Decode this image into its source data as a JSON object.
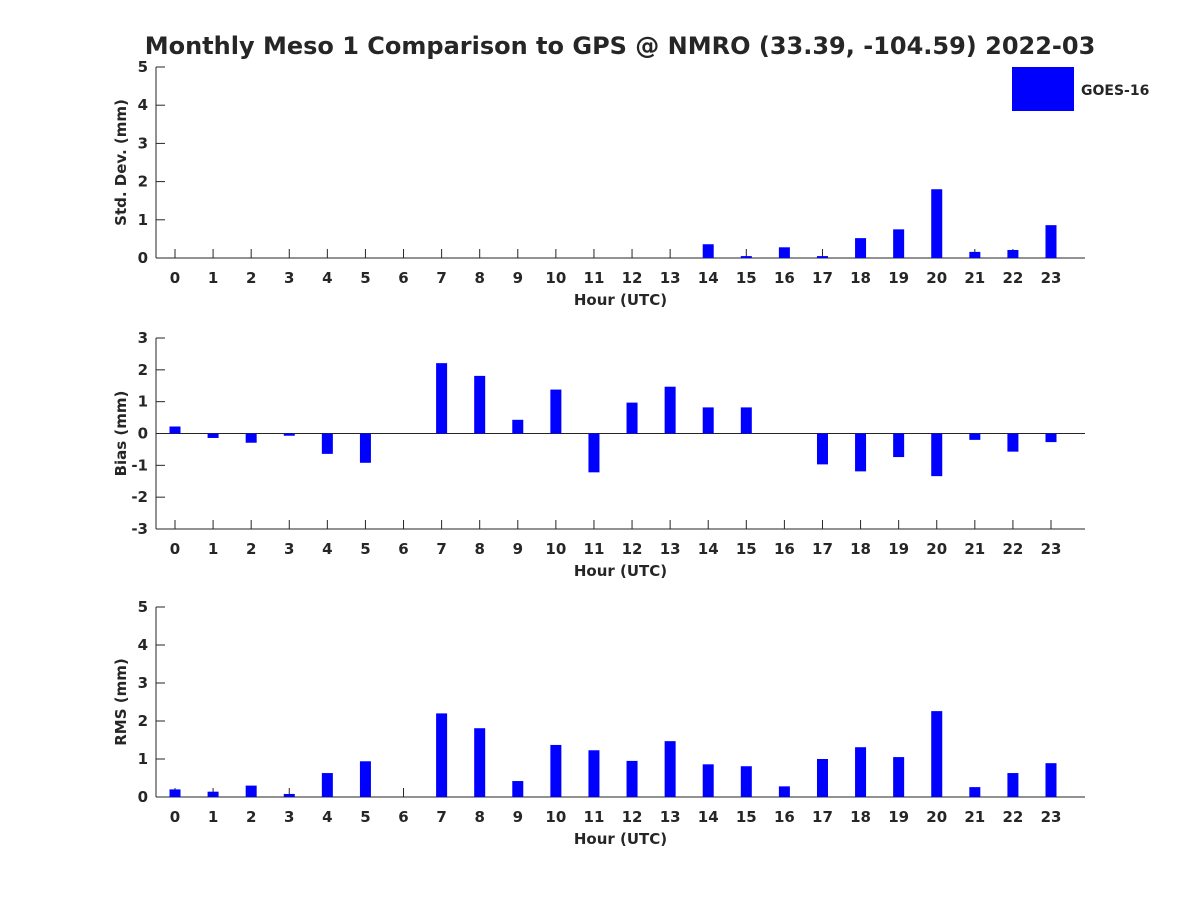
{
  "chart_data": {
    "type": "bar",
    "title": "Monthly Meso 1 Comparison to GPS @ NMRO (33.39, -104.59) 2022-03",
    "legend": {
      "entries": [
        "GOES-16"
      ],
      "placement": "top-right"
    },
    "bar_color": "#0000ff",
    "axis_color": "#262626",
    "categories": [
      "0",
      "1",
      "2",
      "3",
      "4",
      "5",
      "6",
      "7",
      "8",
      "9",
      "10",
      "11",
      "12",
      "13",
      "14",
      "15",
      "16",
      "17",
      "18",
      "19",
      "20",
      "21",
      "22",
      "23"
    ],
    "panels": [
      {
        "xlabel": "Hour (UTC)",
        "ylabel": "Std. Dev. (mm)",
        "ylim": [
          0,
          5
        ],
        "yticks": [
          0,
          1,
          2,
          3,
          4,
          5
        ],
        "series": [
          {
            "name": "GOES-16",
            "values": [
              0,
              0,
              0,
              0,
              0,
              0,
              0,
              0,
              0,
              0,
              0,
              0,
              0,
              0,
              0.36,
              0.05,
              0.28,
              0.05,
              0.52,
              0.75,
              1.8,
              0.16,
              0.21,
              0.86
            ]
          }
        ]
      },
      {
        "xlabel": "Hour (UTC)",
        "ylabel": "Bias (mm)",
        "ylim": [
          -3,
          3
        ],
        "yticks": [
          -3,
          -2,
          -1,
          0,
          1,
          2,
          3
        ],
        "series": [
          {
            "name": "GOES-16",
            "values": [
              0.22,
              -0.14,
              -0.29,
              -0.07,
              -0.64,
              -0.92,
              0,
              2.21,
              1.81,
              0.43,
              1.38,
              -1.22,
              0.97,
              1.47,
              0.82,
              0.82,
              0,
              -0.97,
              -1.19,
              -0.74,
              -1.34,
              -0.2,
              -0.57,
              -0.27
            ]
          }
        ]
      },
      {
        "xlabel": "Hour (UTC)",
        "ylabel": "RMS (mm)",
        "ylim": [
          0,
          5
        ],
        "yticks": [
          0,
          1,
          2,
          3,
          4,
          5
        ],
        "series": [
          {
            "name": "GOES-16",
            "values": [
              0.2,
              0.14,
              0.3,
              0.08,
              0.63,
              0.94,
              0,
              2.2,
              1.81,
              0.42,
              1.37,
              1.23,
              0.95,
              1.47,
              0.86,
              0.81,
              0.28,
              1.0,
              1.31,
              1.05,
              2.26,
              0.26,
              0.63,
              0.89
            ]
          }
        ]
      }
    ]
  }
}
